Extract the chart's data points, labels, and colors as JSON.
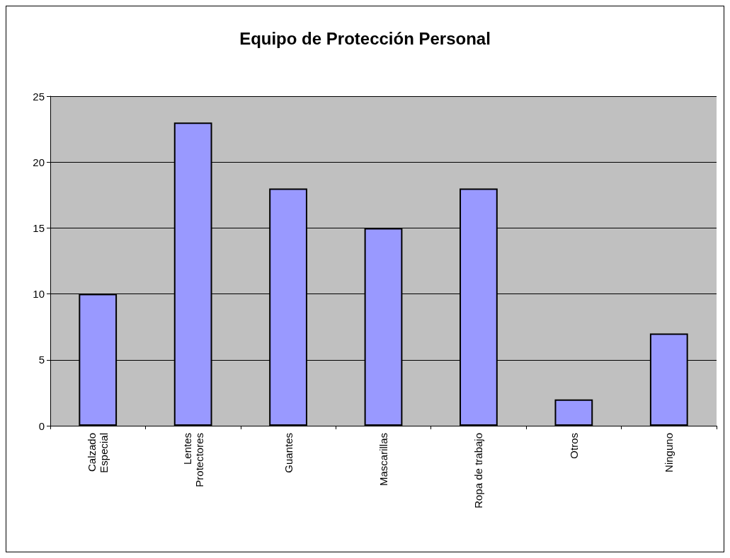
{
  "chart_data": {
    "type": "bar",
    "title": "Equipo de Protección Personal",
    "categories": [
      "Calzado\nEspecial",
      "Lentes\nProtectores",
      "Guantes",
      "Mascarillas",
      "Ropa de trabajo",
      "Otros",
      "Ninguno"
    ],
    "values": [
      10,
      23,
      18,
      15,
      18,
      2,
      7
    ],
    "color": "#9999ff",
    "ylim": [
      0,
      25
    ],
    "yticks": [
      0,
      5,
      10,
      15,
      20,
      25
    ],
    "grid": "y"
  }
}
